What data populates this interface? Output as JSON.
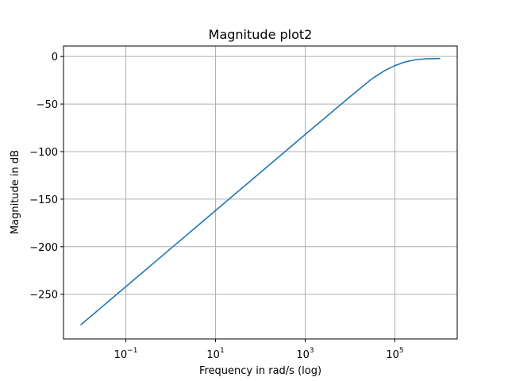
{
  "chart_data": {
    "type": "line",
    "title": "Magnitude plot2",
    "xlabel": "Frequency in rad/s (log)",
    "ylabel": "Magnitude in dB",
    "xscale": "log",
    "xlim": [
      0.00407,
      2450000
    ],
    "ylim": [
      -297,
      11
    ],
    "grid": true,
    "x_ticks": [
      {
        "value": 0.1,
        "base": "10",
        "exp": "−1"
      },
      {
        "value": 10,
        "base": "10",
        "exp": "1"
      },
      {
        "value": 1000,
        "base": "10",
        "exp": "3"
      },
      {
        "value": 100000,
        "base": "10",
        "exp": "5"
      }
    ],
    "y_ticks": [
      {
        "value": 0,
        "label": "0"
      },
      {
        "value": -50,
        "label": "−50"
      },
      {
        "value": -100,
        "label": "−100"
      },
      {
        "value": -150,
        "label": "−150"
      },
      {
        "value": -200,
        "label": "−200"
      },
      {
        "value": -250,
        "label": "−250"
      }
    ],
    "series": [
      {
        "color": "#1f77b4",
        "x": [
          0.01,
          0.1,
          1,
          10,
          100,
          1000,
          10000,
          30000,
          60000,
          100000,
          150000,
          200000,
          300000,
          500000,
          1000000
        ],
        "y": [
          -282,
          -242,
          -202,
          -162,
          -122,
          -82,
          -42.3,
          -23.8,
          -14.6,
          -9.6,
          -6.5,
          -4.9,
          -3.3,
          -2.4,
          -2.1
        ]
      }
    ]
  }
}
